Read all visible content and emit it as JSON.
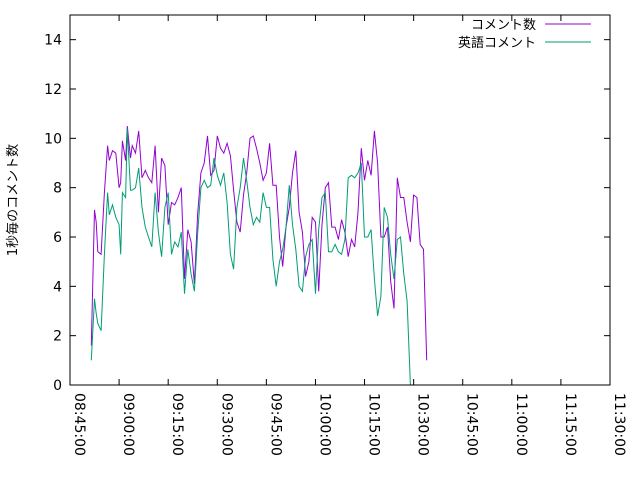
{
  "chart_data": {
    "type": "line",
    "ylabel": "1秒毎のコメント数",
    "xlabel": "",
    "ylim": [
      0,
      15
    ],
    "xlim": [
      "08:45:00",
      "11:30:00"
    ],
    "yticks": [
      0,
      2,
      4,
      6,
      8,
      10,
      12,
      14
    ],
    "xticks": [
      "08:45:00",
      "09:00:00",
      "09:15:00",
      "09:30:00",
      "09:45:00",
      "10:00:00",
      "10:15:00",
      "10:30:00",
      "10:45:00",
      "11:00:00",
      "11:15:00",
      "11:30:00"
    ],
    "legend_position": "top-right",
    "series": [
      {
        "name": "コメント数",
        "color": "#9400d3",
        "points": [
          [
            "08:51:30",
            1.6
          ],
          [
            "08:52:30",
            7.1
          ],
          [
            "08:53:00",
            6.6
          ],
          [
            "08:53:30",
            5.4
          ],
          [
            "08:54:30",
            5.3
          ],
          [
            "08:55:30",
            7.8
          ],
          [
            "08:56:30",
            9.7
          ],
          [
            "08:57:00",
            9.1
          ],
          [
            "08:58:00",
            9.5
          ],
          [
            "08:59:00",
            9.4
          ],
          [
            "09:00:00",
            8.0
          ],
          [
            "09:00:30",
            8.2
          ],
          [
            "09:01:00",
            9.9
          ],
          [
            "09:02:00",
            9.1
          ],
          [
            "09:02:30",
            10.5
          ],
          [
            "09:03:30",
            9.2
          ],
          [
            "09:04:00",
            9.7
          ],
          [
            "09:05:00",
            9.4
          ],
          [
            "09:06:00",
            10.3
          ],
          [
            "09:07:00",
            8.4
          ],
          [
            "09:08:00",
            8.7
          ],
          [
            "09:09:00",
            8.4
          ],
          [
            "09:10:00",
            8.2
          ],
          [
            "09:11:00",
            9.7
          ],
          [
            "09:12:00",
            7.0
          ],
          [
            "09:13:00",
            9.2
          ],
          [
            "09:14:00",
            8.9
          ],
          [
            "09:15:00",
            6.5
          ],
          [
            "09:16:00",
            7.4
          ],
          [
            "09:17:00",
            7.3
          ],
          [
            "09:18:00",
            7.6
          ],
          [
            "09:19:00",
            8.0
          ],
          [
            "09:20:00",
            4.3
          ],
          [
            "09:21:00",
            6.3
          ],
          [
            "09:22:00",
            5.8
          ],
          [
            "09:23:00",
            4.1
          ],
          [
            "09:24:00",
            6.9
          ],
          [
            "09:25:00",
            8.6
          ],
          [
            "09:26:00",
            9.0
          ],
          [
            "09:27:00",
            10.1
          ],
          [
            "09:28:00",
            8.5
          ],
          [
            "09:29:00",
            8.7
          ],
          [
            "09:30:00",
            10.1
          ],
          [
            "09:31:00",
            9.6
          ],
          [
            "09:32:00",
            9.4
          ],
          [
            "09:33:00",
            9.8
          ],
          [
            "09:34:00",
            9.3
          ],
          [
            "09:35:00",
            7.9
          ],
          [
            "09:36:00",
            6.6
          ],
          [
            "09:37:00",
            6.2
          ],
          [
            "09:38:00",
            7.7
          ],
          [
            "09:39:00",
            8.6
          ],
          [
            "09:40:00",
            10.0
          ],
          [
            "09:41:00",
            10.1
          ],
          [
            "09:42:00",
            9.6
          ],
          [
            "09:43:00",
            9.0
          ],
          [
            "09:44:00",
            8.3
          ],
          [
            "09:45:00",
            8.6
          ],
          [
            "09:46:00",
            9.8
          ],
          [
            "09:47:00",
            8.1
          ],
          [
            "09:48:00",
            8.1
          ],
          [
            "09:49:00",
            6.0
          ],
          [
            "09:50:00",
            4.8
          ],
          [
            "09:51:00",
            6.4
          ],
          [
            "09:52:00",
            7.2
          ],
          [
            "09:53:00",
            8.6
          ],
          [
            "09:54:00",
            9.5
          ],
          [
            "09:55:00",
            7.0
          ],
          [
            "09:56:00",
            6.2
          ],
          [
            "09:57:00",
            4.4
          ],
          [
            "09:58:00",
            5.0
          ],
          [
            "09:59:00",
            6.8
          ],
          [
            "10:00:00",
            6.6
          ],
          [
            "10:01:00",
            3.8
          ],
          [
            "10:02:00",
            6.5
          ],
          [
            "10:03:00",
            8.0
          ],
          [
            "10:04:00",
            8.2
          ],
          [
            "10:05:00",
            6.4
          ],
          [
            "10:06:00",
            6.4
          ],
          [
            "10:07:00",
            5.9
          ],
          [
            "10:08:00",
            6.7
          ],
          [
            "10:09:00",
            6.2
          ],
          [
            "10:10:00",
            5.2
          ],
          [
            "10:11:00",
            5.9
          ],
          [
            "10:12:00",
            5.6
          ],
          [
            "10:13:00",
            7.0
          ],
          [
            "10:14:00",
            9.6
          ],
          [
            "10:15:00",
            8.3
          ],
          [
            "10:16:00",
            9.1
          ],
          [
            "10:17:00",
            8.5
          ],
          [
            "10:18:00",
            10.3
          ],
          [
            "10:19:00",
            9.0
          ],
          [
            "10:20:00",
            6.0
          ],
          [
            "10:21:00",
            6.0
          ],
          [
            "10:22:00",
            6.4
          ],
          [
            "10:23:00",
            4.2
          ],
          [
            "10:24:00",
            3.1
          ],
          [
            "10:25:00",
            8.4
          ],
          [
            "10:26:00",
            7.6
          ],
          [
            "10:27:00",
            7.6
          ],
          [
            "10:28:00",
            6.6
          ],
          [
            "10:29:00",
            5.8
          ],
          [
            "10:30:00",
            7.7
          ],
          [
            "10:31:00",
            7.6
          ],
          [
            "10:32:00",
            5.7
          ],
          [
            "10:33:00",
            5.5
          ],
          [
            "10:34:00",
            1.0
          ]
        ]
      },
      {
        "name": "英語コメント",
        "color": "#009e73",
        "points": [
          [
            "08:51:30",
            1.0
          ],
          [
            "08:52:30",
            3.5
          ],
          [
            "08:53:00",
            2.9
          ],
          [
            "08:53:30",
            2.5
          ],
          [
            "08:54:30",
            2.2
          ],
          [
            "08:55:30",
            5.3
          ],
          [
            "08:56:30",
            7.8
          ],
          [
            "08:57:00",
            6.9
          ],
          [
            "08:58:00",
            7.3
          ],
          [
            "08:59:00",
            6.8
          ],
          [
            "09:00:00",
            6.5
          ],
          [
            "09:00:30",
            5.3
          ],
          [
            "09:01:00",
            7.8
          ],
          [
            "09:02:00",
            7.6
          ],
          [
            "09:02:30",
            10.4
          ],
          [
            "09:03:30",
            7.9
          ],
          [
            "09:04:00",
            7.9
          ],
          [
            "09:05:00",
            8.0
          ],
          [
            "09:06:00",
            8.8
          ],
          [
            "09:07:00",
            7.2
          ],
          [
            "09:08:00",
            6.4
          ],
          [
            "09:09:00",
            6.0
          ],
          [
            "09:10:00",
            5.6
          ],
          [
            "09:11:00",
            7.8
          ],
          [
            "09:12:00",
            6.2
          ],
          [
            "09:13:00",
            5.2
          ],
          [
            "09:14:00",
            7.2
          ],
          [
            "09:15:00",
            7.8
          ],
          [
            "09:16:00",
            5.3
          ],
          [
            "09:17:00",
            5.8
          ],
          [
            "09:18:00",
            5.6
          ],
          [
            "09:19:00",
            6.2
          ],
          [
            "09:20:00",
            3.7
          ],
          [
            "09:21:00",
            5.5
          ],
          [
            "09:22:00",
            4.5
          ],
          [
            "09:23:00",
            3.8
          ],
          [
            "09:24:00",
            6.1
          ],
          [
            "09:25:00",
            8.0
          ],
          [
            "09:26:00",
            8.3
          ],
          [
            "09:27:00",
            8.0
          ],
          [
            "09:28:00",
            8.1
          ],
          [
            "09:29:00",
            9.2
          ],
          [
            "09:30:00",
            8.5
          ],
          [
            "09:31:00",
            8.1
          ],
          [
            "09:32:00",
            8.6
          ],
          [
            "09:33:00",
            7.4
          ],
          [
            "09:34:00",
            5.3
          ],
          [
            "09:35:00",
            4.7
          ],
          [
            "09:36:00",
            7.2
          ],
          [
            "09:37:00",
            8.0
          ],
          [
            "09:38:00",
            9.2
          ],
          [
            "09:39:00",
            8.3
          ],
          [
            "09:40:00",
            7.2
          ],
          [
            "09:41:00",
            6.5
          ],
          [
            "09:42:00",
            6.8
          ],
          [
            "09:43:00",
            6.6
          ],
          [
            "09:44:00",
            7.8
          ],
          [
            "09:45:00",
            7.2
          ],
          [
            "09:46:00",
            7.2
          ],
          [
            "09:47:00",
            5.1
          ],
          [
            "09:48:00",
            4.0
          ],
          [
            "09:49:00",
            5.0
          ],
          [
            "09:50:00",
            5.5
          ],
          [
            "09:51:00",
            6.4
          ],
          [
            "09:52:00",
            8.1
          ],
          [
            "09:53:00",
            6.5
          ],
          [
            "09:54:00",
            5.5
          ],
          [
            "09:55:00",
            4.0
          ],
          [
            "09:56:00",
            3.8
          ],
          [
            "09:57:00",
            5.2
          ],
          [
            "09:58:00",
            5.7
          ],
          [
            "09:59:00",
            5.9
          ],
          [
            "10:00:00",
            3.7
          ],
          [
            "10:01:00",
            6.3
          ],
          [
            "10:02:00",
            7.6
          ],
          [
            "10:03:00",
            7.8
          ],
          [
            "10:04:00",
            5.4
          ],
          [
            "10:05:00",
            5.4
          ],
          [
            "10:06:00",
            5.7
          ],
          [
            "10:07:00",
            5.4
          ],
          [
            "10:08:00",
            5.3
          ],
          [
            "10:09:00",
            5.9
          ],
          [
            "10:10:00",
            8.4
          ],
          [
            "10:11:00",
            8.5
          ],
          [
            "10:12:00",
            8.4
          ],
          [
            "10:13:00",
            8.6
          ],
          [
            "10:14:00",
            9.0
          ],
          [
            "10:15:00",
            6.0
          ],
          [
            "10:16:00",
            6.0
          ],
          [
            "10:17:00",
            6.3
          ],
          [
            "10:18:00",
            4.3
          ],
          [
            "10:19:00",
            2.8
          ],
          [
            "10:20:00",
            3.6
          ],
          [
            "10:21:00",
            7.2
          ],
          [
            "10:22:00",
            6.8
          ],
          [
            "10:23:00",
            5.3
          ],
          [
            "10:24:00",
            4.3
          ],
          [
            "10:25:00",
            5.9
          ],
          [
            "10:26:00",
            6.0
          ],
          [
            "10:27:00",
            4.5
          ],
          [
            "10:28:00",
            3.4
          ],
          [
            "10:29:00",
            0.0
          ]
        ]
      }
    ]
  }
}
